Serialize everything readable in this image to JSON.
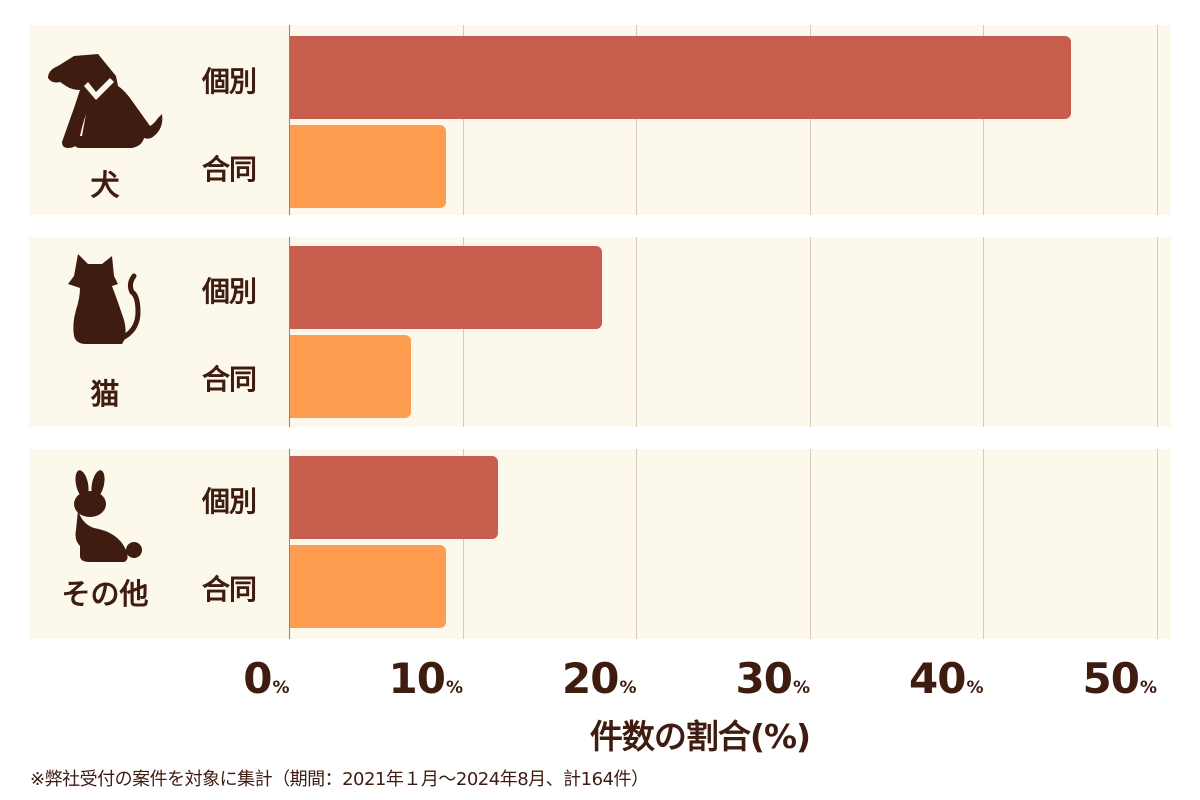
{
  "chart_data": {
    "type": "bar",
    "orientation": "horizontal",
    "title": "",
    "xlabel": "件数の割合(%)",
    "ylabel": "",
    "xlim": [
      0,
      50
    ],
    "x_ticks": [
      "0",
      "10",
      "20",
      "30",
      "40",
      "50"
    ],
    "tick_suffix": "%",
    "grid": true,
    "groups": [
      "犬",
      "猫",
      "その他"
    ],
    "series": [
      {
        "name": "個別",
        "color": "#c75d4d",
        "values": [
          45,
          18,
          12
        ]
      },
      {
        "name": "合同",
        "color": "#fe9c4f",
        "values": [
          9,
          7,
          9
        ]
      }
    ],
    "footnote": "※弊社受付の案件を対象に集計（期間：2021年１月〜2024年8月、計164件）"
  },
  "groups": [
    {
      "label": "犬",
      "icon": "dog-icon",
      "bars": [
        {
          "label": "個別",
          "value": 45
        },
        {
          "label": "合同",
          "value": 9
        }
      ]
    },
    {
      "label": "猫",
      "icon": "cat-icon",
      "bars": [
        {
          "label": "個別",
          "value": 18
        },
        {
          "label": "合同",
          "value": 7
        }
      ]
    },
    {
      "label": "その他",
      "icon": "rabbit-icon",
      "bars": [
        {
          "label": "個別",
          "value": 12
        },
        {
          "label": "合同",
          "value": 9
        }
      ]
    }
  ],
  "axis": {
    "ticks": [
      {
        "num": "0",
        "pct": "%"
      },
      {
        "num": "10",
        "pct": "%"
      },
      {
        "num": "20",
        "pct": "%"
      },
      {
        "num": "30",
        "pct": "%"
      },
      {
        "num": "40",
        "pct": "%"
      },
      {
        "num": "50",
        "pct": "%"
      }
    ],
    "title": "件数の割合(%)"
  },
  "footnote": "※弊社受付の案件を対象に集計（期間：2021年１月〜2024年8月、計164件）",
  "colors": {
    "individual": "#c75d4d",
    "joint": "#fe9c4f",
    "panel": "#fdf8ec",
    "text": "#3e1c10"
  }
}
